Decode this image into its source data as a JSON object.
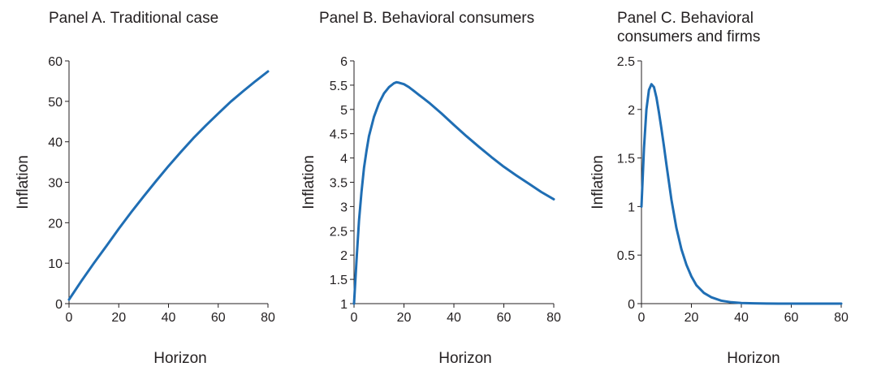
{
  "chart_data": [
    {
      "type": "line",
      "title": [
        "Panel A. Traditional case"
      ],
      "xlabel": "Horizon",
      "ylabel": "Inflation",
      "xlim": [
        0,
        80
      ],
      "ylim": [
        0,
        60
      ],
      "xticks": [
        0,
        20,
        40,
        60,
        80
      ],
      "yticks": [
        0,
        10,
        20,
        30,
        40,
        50,
        60
      ],
      "ytick_labels": [
        "0",
        "10",
        "20",
        "30",
        "40",
        "50",
        "60"
      ],
      "grid": false,
      "color": "#1f6eb4",
      "series": [
        {
          "x": [
            0,
            5,
            10,
            15,
            20,
            25,
            30,
            35,
            40,
            45,
            50,
            55,
            60,
            65,
            70,
            75,
            80
          ],
          "values": [
            1,
            5.6,
            10,
            14.2,
            18.5,
            22.6,
            26.5,
            30.3,
            34,
            37.5,
            40.9,
            44,
            47,
            49.9,
            52.5,
            55,
            57.4
          ]
        }
      ]
    },
    {
      "type": "line",
      "title": [
        "Panel B. Behavioral consumers"
      ],
      "xlabel": "Horizon",
      "ylabel": "Inflation",
      "xlim": [
        0,
        80
      ],
      "ylim": [
        1,
        6
      ],
      "xticks": [
        0,
        20,
        40,
        60,
        80
      ],
      "yticks": [
        1,
        1.5,
        2,
        2.5,
        3,
        3.5,
        4,
        4.5,
        5,
        5.5,
        6
      ],
      "ytick_labels": [
        "1",
        "1.5",
        "2",
        "2.5",
        "3",
        "3.5",
        "4",
        "4.5",
        "5",
        "5.5",
        "6"
      ],
      "grid": false,
      "color": "#1f6eb4",
      "series": [
        {
          "x": [
            0,
            1,
            2,
            3,
            4,
            5,
            6,
            8,
            10,
            12,
            14,
            16,
            17,
            18,
            20,
            22,
            24,
            26,
            28,
            30,
            35,
            40,
            45,
            50,
            55,
            60,
            65,
            70,
            75,
            80
          ],
          "values": [
            1,
            1.9,
            2.7,
            3.3,
            3.8,
            4.15,
            4.45,
            4.85,
            5.13,
            5.33,
            5.46,
            5.54,
            5.56,
            5.55,
            5.52,
            5.46,
            5.38,
            5.3,
            5.22,
            5.14,
            4.92,
            4.68,
            4.45,
            4.23,
            4.02,
            3.82,
            3.64,
            3.47,
            3.3,
            3.15
          ]
        }
      ]
    },
    {
      "type": "line",
      "title": [
        "Panel C. Behavioral",
        "consumers and firms"
      ],
      "xlabel": "Horizon",
      "ylabel": "Inflation",
      "xlim": [
        0,
        80
      ],
      "ylim": [
        0,
        2.5
      ],
      "xticks": [
        0,
        20,
        40,
        60,
        80
      ],
      "yticks": [
        0,
        0.5,
        1,
        1.5,
        2,
        2.5
      ],
      "ytick_labels": [
        "0",
        "0.5",
        "1",
        "1.5",
        "2",
        "2.5"
      ],
      "grid": false,
      "color": "#1f6eb4",
      "series": [
        {
          "x": [
            0,
            1,
            2,
            3,
            4,
            5,
            6,
            7,
            8,
            9,
            10,
            12,
            14,
            16,
            18,
            20,
            22,
            25,
            28,
            32,
            36,
            40,
            45,
            50,
            55,
            60,
            70,
            80
          ],
          "values": [
            1,
            1.6,
            2.0,
            2.2,
            2.26,
            2.23,
            2.12,
            1.97,
            1.8,
            1.62,
            1.43,
            1.07,
            0.78,
            0.56,
            0.4,
            0.28,
            0.19,
            0.11,
            0.065,
            0.03,
            0.014,
            0.007,
            0.003,
            0.001,
            0,
            0,
            0,
            0
          ]
        }
      ]
    }
  ]
}
